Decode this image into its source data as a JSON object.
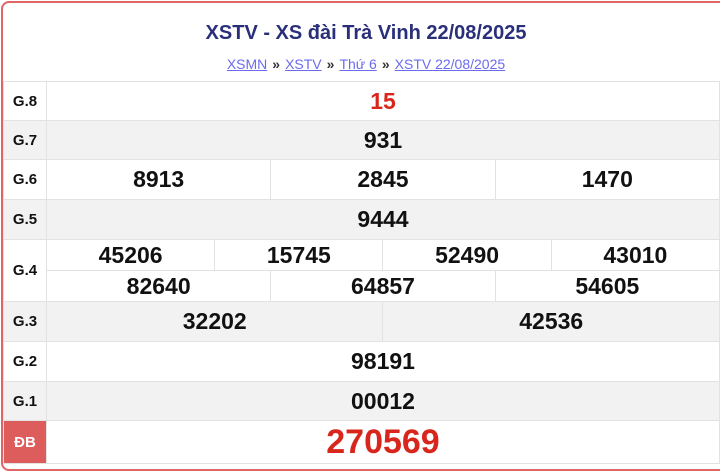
{
  "title": "XSTV - XS đài Trà Vinh 22/08/2025",
  "breadcrumb": [
    "XSMN",
    "XSTV",
    "Thứ 6",
    "XSTV 22/08/2025"
  ],
  "breadcrumb_sep": "»",
  "prizes": {
    "g8": {
      "label": "G.8",
      "values": [
        "15"
      ]
    },
    "g7": {
      "label": "G.7",
      "values": [
        "931"
      ]
    },
    "g6": {
      "label": "G.6",
      "values": [
        "8913",
        "2845",
        "1470"
      ]
    },
    "g5": {
      "label": "G.5",
      "values": [
        "9444"
      ]
    },
    "g4": {
      "label": "G.4",
      "values": [
        "45206",
        "15745",
        "52490",
        "43010",
        "82640",
        "64857",
        "54605"
      ]
    },
    "g3": {
      "label": "G.3",
      "values": [
        "32202",
        "42536"
      ]
    },
    "g2": {
      "label": "G.2",
      "values": [
        "98191"
      ]
    },
    "g1": {
      "label": "G.1",
      "values": [
        "00012"
      ]
    },
    "db": {
      "label": "ĐB",
      "values": [
        "270569"
      ]
    }
  },
  "colors": {
    "accent_red": "#d9261c",
    "title_blue": "#2a2f7a",
    "link": "#6b6bf0",
    "special_label_bg": "#dd5c5c"
  }
}
